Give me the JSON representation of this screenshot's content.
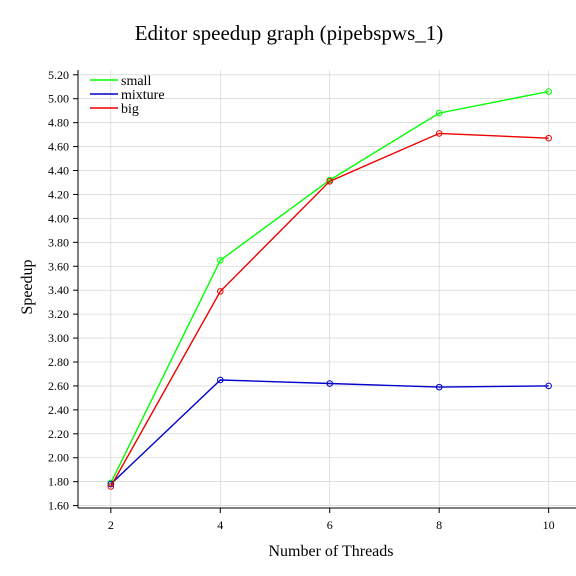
{
  "chart_data": {
    "type": "line",
    "title": "Editor speedup graph (pipebspws_1)",
    "xlabel": "Number of Threads",
    "ylabel": "Speedup",
    "x": [
      2,
      4,
      6,
      8,
      10
    ],
    "xlim": [
      1.4,
      10.5
    ],
    "ylim": [
      1.58,
      5.24
    ],
    "xticks": [
      "2",
      "4",
      "6",
      "8",
      "10"
    ],
    "yticks": [
      "1.60",
      "1.80",
      "2.00",
      "2.20",
      "2.40",
      "2.60",
      "2.80",
      "3.00",
      "3.20",
      "3.40",
      "3.60",
      "3.80",
      "4.00",
      "4.20",
      "4.40",
      "4.60",
      "4.80",
      "5.00",
      "5.20"
    ],
    "grid": true,
    "legend_position": "top-left",
    "series": [
      {
        "name": "small",
        "color": "#00ff00",
        "values": [
          1.79,
          3.65,
          4.32,
          4.88,
          5.06
        ]
      },
      {
        "name": "mixture",
        "color": "#0000cc",
        "values": [
          1.78,
          2.65,
          2.62,
          2.59,
          2.6
        ]
      },
      {
        "name": "big",
        "color": "#ee0000",
        "values": [
          1.76,
          3.39,
          4.31,
          4.71,
          4.67
        ]
      }
    ]
  }
}
